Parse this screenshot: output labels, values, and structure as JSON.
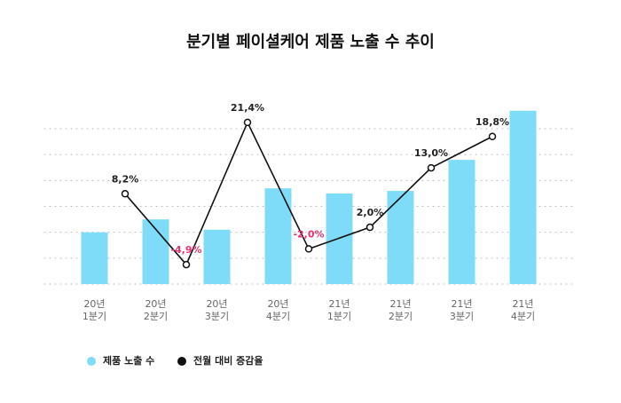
{
  "chart_data": {
    "type": "bar_line",
    "title": "분기별 페이셜케어 제품 노출 수 추이",
    "categories": [
      [
        "20년",
        "1분기"
      ],
      [
        "20년",
        "2분기"
      ],
      [
        "20년",
        "3분기"
      ],
      [
        "20년",
        "4분기"
      ],
      [
        "21년",
        "1분기"
      ],
      [
        "21년",
        "2분기"
      ],
      [
        "21년",
        "3분기"
      ],
      [
        "21년",
        "4분기"
      ]
    ],
    "series": [
      {
        "name": "제품 노출 수",
        "color": "#7fdcf8",
        "values": [
          2.0,
          2.5,
          2.1,
          3.7,
          3.5,
          3.6,
          4.8,
          6.7
        ]
      },
      {
        "name": "전월 대비 증감율",
        "color": "#111111",
        "axis": "y2",
        "negative_color": "#e8336d",
        "values": [
          null,
          8.2,
          -4.9,
          21.4,
          -2.0,
          2.0,
          13.0,
          18.8
        ],
        "value_labels": [
          null,
          "8,2%",
          "-4,9%",
          "21,4%",
          "-2,0%",
          "2,0%",
          "13,0%",
          "18,8%"
        ]
      }
    ],
    "ylim": [
      0,
      7
    ],
    "y2lim": [
      -8.5,
      25
    ],
    "grid": true
  }
}
